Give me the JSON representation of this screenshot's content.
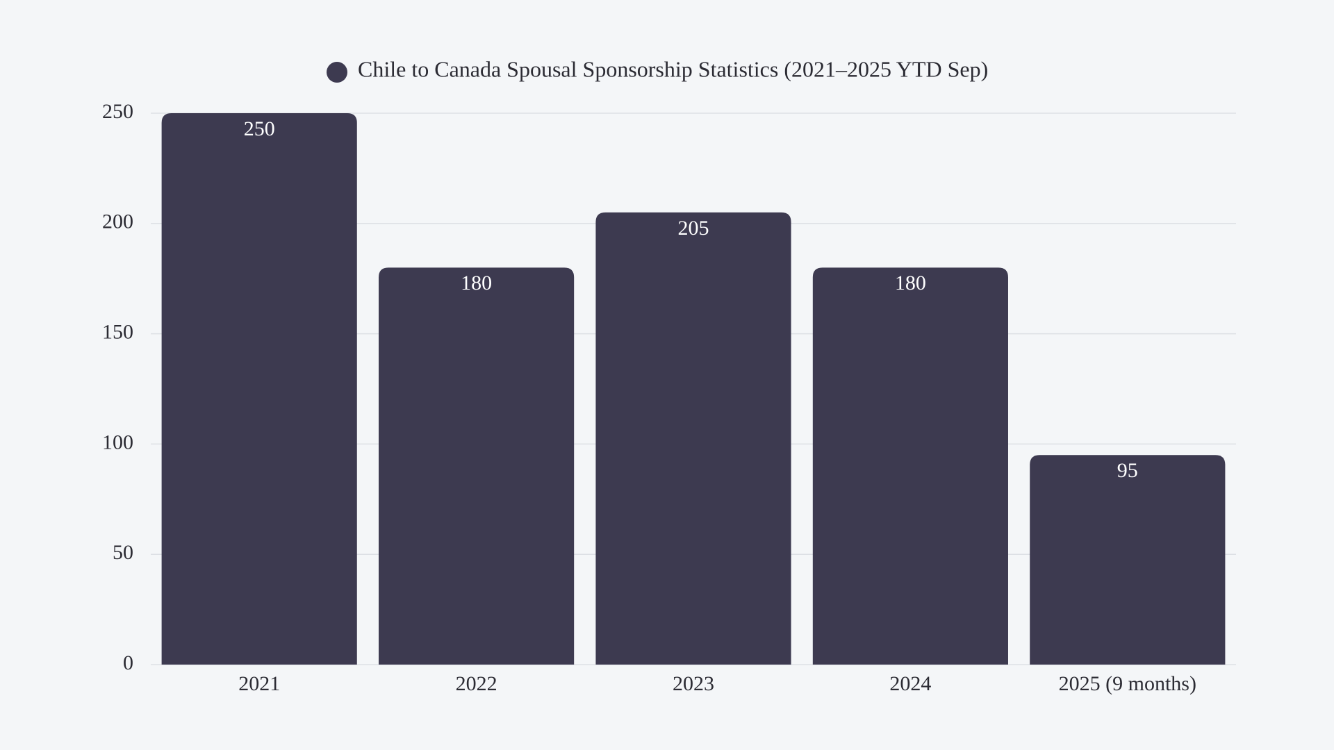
{
  "chart_data": {
    "type": "bar",
    "categories": [
      "2021",
      "2022",
      "2023",
      "2024",
      "2025 (9 months)"
    ],
    "series": [
      {
        "name": "Chile to Canada Spousal Sponsorship Statistics (2021–2025 YTD Sep)",
        "color": "#3d3a50",
        "values": [
          250,
          180,
          205,
          180,
          95
        ]
      }
    ],
    "ylim": [
      0,
      250
    ],
    "yticks": [
      0,
      50,
      100,
      150,
      200,
      250
    ],
    "grid": true,
    "data_labels": true,
    "legend": "top"
  }
}
